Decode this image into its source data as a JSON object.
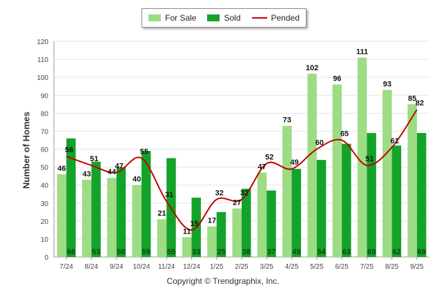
{
  "colors": {
    "for_sale": "#9ddc85",
    "sold": "#14a32a",
    "pended": "#c00000",
    "grid": "#e4e4e4",
    "axis": "#999999",
    "text": "#444444"
  },
  "legend": {
    "for_sale_label": "For Sale",
    "sold_label": "Sold",
    "pended_label": "Pended"
  },
  "copyright": "Copyright © Trendgraphix, Inc.",
  "chart_data": {
    "type": "bar",
    "title": "",
    "xlabel": "",
    "ylabel": "Number of Homes",
    "ylim": [
      0,
      120
    ],
    "yticks": [
      0,
      10,
      20,
      30,
      40,
      50,
      60,
      70,
      80,
      90,
      100,
      110,
      120
    ],
    "grid": true,
    "legend_position": "top-center",
    "categories": [
      "7/24",
      "8/24",
      "9/24",
      "10/24",
      "11/24",
      "12/24",
      "1/25",
      "2/25",
      "3/25",
      "4/25",
      "5/25",
      "6/25",
      "7/25",
      "8/25",
      "9/25"
    ],
    "series": [
      {
        "name": "For Sale",
        "kind": "bar",
        "values": [
          46,
          43,
          44,
          40,
          21,
          11,
          17,
          27,
          47,
          73,
          102,
          96,
          111,
          93,
          85
        ]
      },
      {
        "name": "Sold",
        "kind": "bar",
        "values": [
          66,
          53,
          50,
          59,
          55,
          33,
          25,
          38,
          37,
          49,
          54,
          63,
          69,
          62,
          69
        ]
      },
      {
        "name": "Pended",
        "kind": "line",
        "values": [
          56,
          51,
          47,
          55,
          31,
          15,
          32,
          32,
          52,
          49,
          60,
          65,
          51,
          61,
          82
        ]
      }
    ]
  }
}
